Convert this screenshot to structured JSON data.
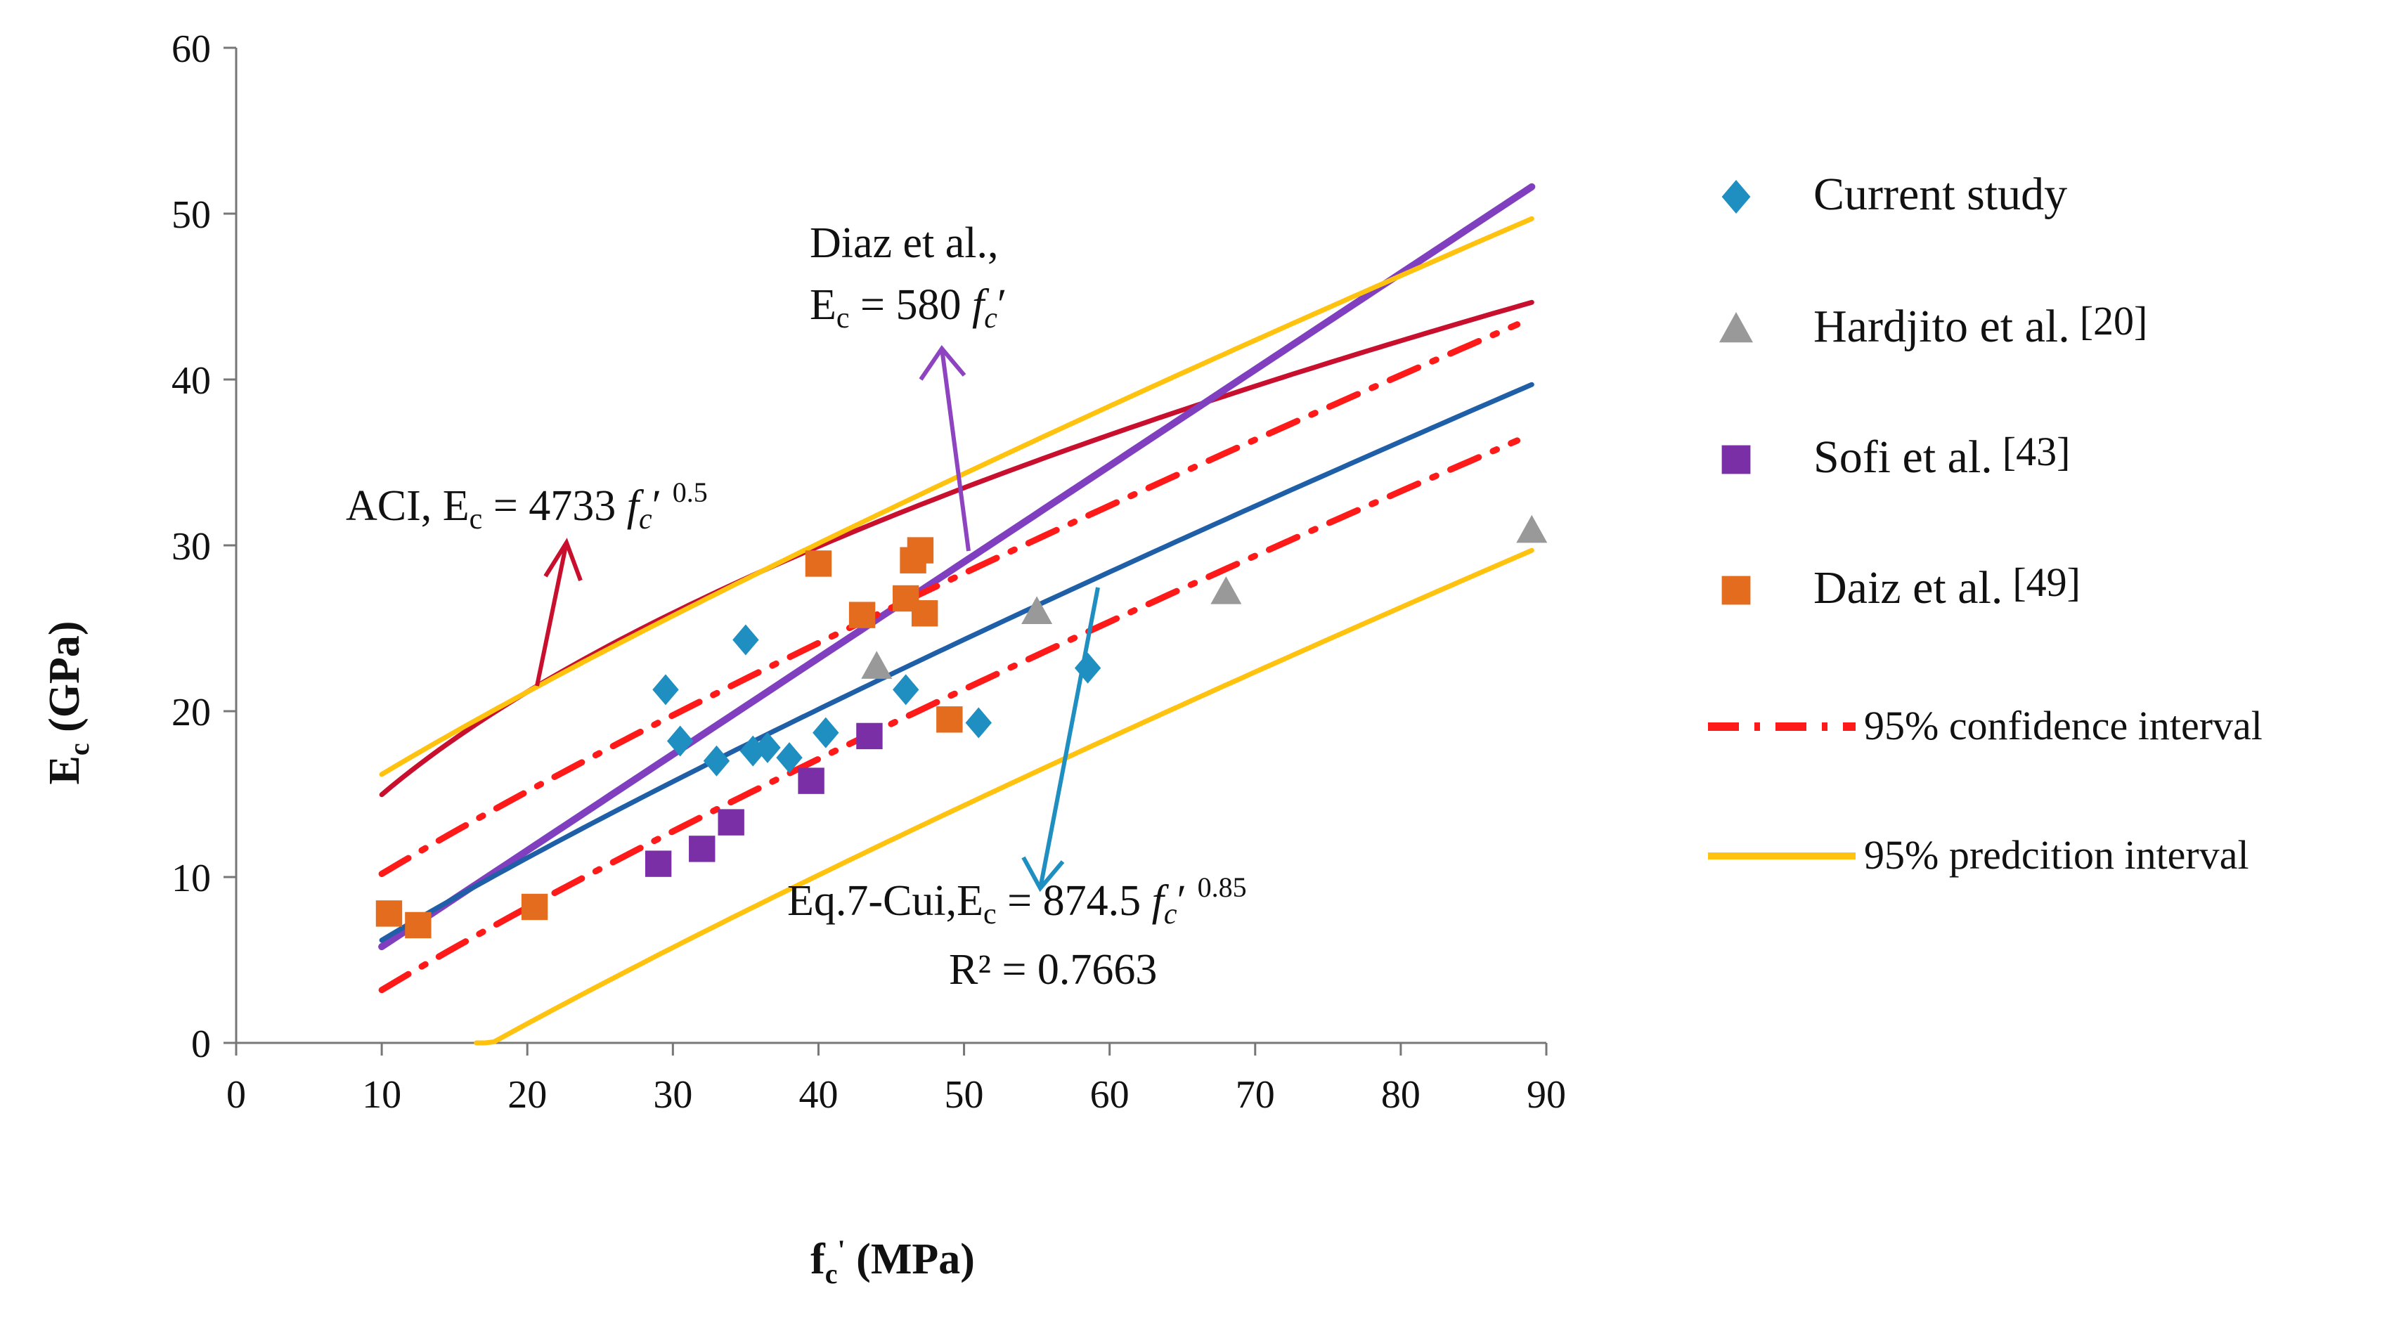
{
  "chart_data": {
    "type": "scatter",
    "xlabel": "fc' (MPa)",
    "ylabel": "Ec (GPa)",
    "xlim": [
      0,
      90
    ],
    "ylim": [
      0,
      60
    ],
    "x_ticks": [
      "0",
      "10",
      "20",
      "30",
      "40",
      "50",
      "60",
      "70",
      "80",
      "90"
    ],
    "y_ticks": [
      "0",
      "10",
      "20",
      "30",
      "40",
      "50",
      "60"
    ],
    "grid": false,
    "legend_position": "right",
    "series": [
      {
        "name": "Current study",
        "marker": "diamond",
        "color": "#1f8fc1",
        "points": [
          [
            29.5,
            21.3
          ],
          [
            30.5,
            18.2
          ],
          [
            33,
            17
          ],
          [
            35,
            24.3
          ],
          [
            35.5,
            17.6
          ],
          [
            36.5,
            17.8
          ],
          [
            38,
            17.2
          ],
          [
            40.5,
            18.7
          ],
          [
            46,
            21.3
          ],
          [
            51,
            19.3
          ],
          [
            58.5,
            22.6
          ]
        ]
      },
      {
        "name": "Hardjito et al.",
        "ref": "[20]",
        "marker": "triangle",
        "color": "#999999",
        "points": [
          [
            44,
            22.7
          ],
          [
            55,
            26
          ],
          [
            68,
            27.2
          ],
          [
            89,
            30.9
          ]
        ]
      },
      {
        "name": "Sofi et al.",
        "ref": "[43]",
        "marker": "square",
        "color": "#7b2fa6",
        "points": [
          [
            29,
            10.8
          ],
          [
            32,
            11.7
          ],
          [
            34,
            13.3
          ],
          [
            39.5,
            15.8
          ],
          [
            43.5,
            18.5
          ]
        ]
      },
      {
        "name": "Daiz et al.",
        "ref": "[49]",
        "marker": "square",
        "color": "#e46c1f",
        "points": [
          [
            10.5,
            7.8
          ],
          [
            12.5,
            7.1
          ],
          [
            20.5,
            8.2
          ],
          [
            40,
            28.9
          ],
          [
            43,
            25.8
          ],
          [
            46,
            26.8
          ],
          [
            46.5,
            29.1
          ],
          [
            47,
            29.7
          ],
          [
            47.3,
            25.9
          ],
          [
            49,
            19.5
          ]
        ]
      }
    ],
    "curves": [
      {
        "id": "aci",
        "color": "#c8102e",
        "formula": "4.733*sqrt(x)",
        "range": [
          10,
          89
        ]
      },
      {
        "id": "diaz",
        "color": "#7f3fbf",
        "formula": "0.58*x",
        "range": [
          10,
          89
        ]
      },
      {
        "id": "cui",
        "color": "#1f5fa8",
        "formula": "0.8745*x^0.85",
        "range": [
          10,
          89
        ]
      },
      {
        "name": "95% confidence interval",
        "id": "ci-upper",
        "color": "#ff1a1a",
        "dash": true,
        "formula": "0.8745*x^0.85+4",
        "range": [
          10,
          88
        ]
      },
      {
        "id": "ci-lower",
        "color": "#ff1a1a",
        "dash": true,
        "formula": "0.8745*x^0.85-3",
        "range": [
          10,
          88
        ]
      },
      {
        "name": "95% predcition interval",
        "id": "pi-upper",
        "color": "#ffc20e",
        "formula": "0.8745*x^0.85+10",
        "range": [
          10,
          89
        ]
      },
      {
        "id": "pi-lower",
        "color": "#ffc20e",
        "formula": "0.8745*x^0.85-10",
        "range": [
          16.5,
          89
        ]
      }
    ],
    "annotations": {
      "aci": "ACI, Ec = 4733 fc′ 0.5",
      "diaz_line1": "Diaz et al.,",
      "diaz_line2": "Ec = 580 fc′",
      "cui_line1": "Eq.7-Cui,Ec = 874.5 fc′ 0.85",
      "cui_line2": "R² = 0.7663"
    },
    "legend": [
      {
        "label": "Current study",
        "ref": ""
      },
      {
        "label": "Hardjito et al.",
        "ref": "[20]"
      },
      {
        "label": "Sofi et al.",
        "ref": "[43]"
      },
      {
        "label": "Daiz et al.",
        "ref": "[49]"
      },
      {
        "label": "95% confidence interval",
        "ref": ""
      },
      {
        "label": "95% predcition interval",
        "ref": ""
      }
    ]
  }
}
